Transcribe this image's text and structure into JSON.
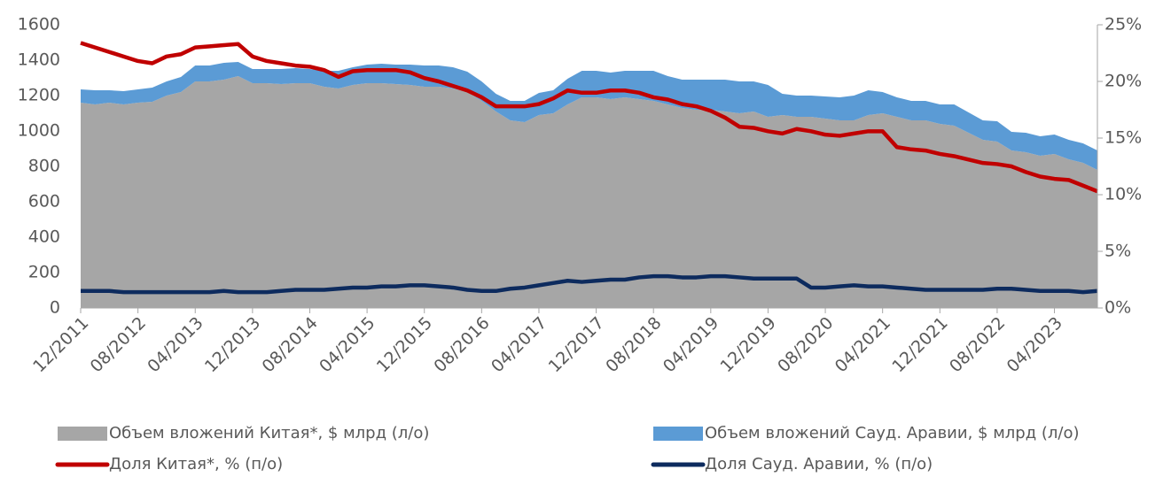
{
  "chart_data": {
    "type": "area",
    "categories": [
      "12/2011",
      null,
      null,
      null,
      "08/2012",
      null,
      null,
      null,
      "04/2013",
      null,
      null,
      null,
      "12/2013",
      null,
      null,
      null,
      "08/2014",
      null,
      null,
      null,
      "04/2015",
      null,
      null,
      null,
      "12/2015",
      null,
      null,
      null,
      "08/2016",
      null,
      null,
      null,
      "04/2017",
      null,
      null,
      null,
      "12/2017",
      null,
      null,
      null,
      "08/2018",
      null,
      null,
      null,
      "04/2019",
      null,
      null,
      null,
      "12/2019",
      null,
      null,
      null,
      "08/2020",
      null,
      null,
      null,
      "04/2021",
      null,
      null,
      null,
      "12/2021",
      null,
      null,
      null,
      "08/2022",
      null,
      null,
      null,
      "04/2023",
      null,
      null,
      null
    ],
    "series": [
      {
        "name": "Объем вложений Китая*, $ млрд (л/о)",
        "type": "area",
        "stacked": true,
        "color": "#a6a6a6",
        "values": [
          1160,
          1150,
          1160,
          1150,
          1160,
          1165,
          1200,
          1220,
          1280,
          1280,
          1290,
          1310,
          1270,
          1270,
          1265,
          1270,
          1270,
          1250,
          1240,
          1260,
          1270,
          1270,
          1265,
          1260,
          1250,
          1250,
          1240,
          1220,
          1170,
          1110,
          1060,
          1050,
          1090,
          1100,
          1150,
          1190,
          1190,
          1180,
          1190,
          1180,
          1170,
          1150,
          1130,
          1120,
          1120,
          1110,
          1100,
          1110,
          1080,
          1090,
          1080,
          1080,
          1070,
          1060,
          1060,
          1090,
          1100,
          1080,
          1060,
          1060,
          1040,
          1030,
          990,
          950,
          940,
          890,
          880,
          860,
          870,
          840,
          820,
          780
        ]
      },
      {
        "name": "Объем вложений Сауд. Аравии, $ млрд (л/о)",
        "type": "area",
        "stacked": true,
        "color": "#5b9bd5",
        "values": [
          75,
          80,
          70,
          75,
          75,
          80,
          80,
          85,
          90,
          90,
          95,
          80,
          80,
          80,
          85,
          85,
          80,
          90,
          100,
          100,
          105,
          110,
          110,
          115,
          120,
          120,
          120,
          115,
          110,
          100,
          110,
          120,
          125,
          130,
          145,
          150,
          150,
          150,
          150,
          160,
          170,
          160,
          160,
          170,
          170,
          180,
          180,
          170,
          180,
          120,
          120,
          120,
          125,
          130,
          140,
          140,
          120,
          110,
          110,
          110,
          110,
          120,
          115,
          110,
          115,
          105,
          110,
          110,
          110,
          110,
          110,
          110
        ]
      },
      {
        "name": "Доля Китая*, % (п/о)",
        "type": "line",
        "axis": "y2",
        "color": "#c00000",
        "values": [
          23.4,
          23.0,
          22.6,
          22.2,
          21.8,
          21.6,
          22.2,
          22.4,
          23.0,
          23.1,
          23.2,
          23.3,
          22.2,
          21.8,
          21.6,
          21.4,
          21.3,
          21.0,
          20.4,
          20.9,
          21.0,
          21.0,
          21.0,
          20.8,
          20.3,
          20.0,
          19.6,
          19.2,
          18.6,
          17.8,
          17.8,
          17.8,
          18.0,
          18.5,
          19.2,
          19.0,
          19.0,
          19.2,
          19.2,
          19.0,
          18.6,
          18.4,
          18.0,
          17.8,
          17.4,
          16.8,
          16.0,
          15.9,
          15.6,
          15.4,
          15.8,
          15.6,
          15.3,
          15.2,
          15.4,
          15.6,
          15.6,
          14.2,
          14.0,
          13.9,
          13.6,
          13.4,
          13.1,
          12.8,
          12.7,
          12.5,
          12.0,
          11.6,
          11.4,
          11.3,
          10.8,
          10.3
        ]
      },
      {
        "name": "Доля Сауд. Аравии, % (п/о)",
        "type": "line",
        "axis": "y2",
        "color": "#0d2b5e",
        "values": [
          1.5,
          1.5,
          1.5,
          1.4,
          1.4,
          1.4,
          1.4,
          1.4,
          1.4,
          1.4,
          1.5,
          1.4,
          1.4,
          1.4,
          1.5,
          1.6,
          1.6,
          1.6,
          1.7,
          1.8,
          1.8,
          1.9,
          1.9,
          2.0,
          2.0,
          1.9,
          1.8,
          1.6,
          1.5,
          1.5,
          1.7,
          1.8,
          2.0,
          2.2,
          2.4,
          2.3,
          2.4,
          2.5,
          2.5,
          2.7,
          2.8,
          2.8,
          2.7,
          2.7,
          2.8,
          2.8,
          2.7,
          2.6,
          2.6,
          2.6,
          2.6,
          1.8,
          1.8,
          1.9,
          2.0,
          1.9,
          1.9,
          1.8,
          1.7,
          1.6,
          1.6,
          1.6,
          1.6,
          1.6,
          1.7,
          1.7,
          1.6,
          1.5,
          1.5,
          1.5,
          1.4,
          1.5
        ]
      }
    ],
    "ylim": [
      0,
      1600
    ],
    "yticks": [
      0,
      200,
      400,
      600,
      800,
      1000,
      1200,
      1400,
      1600
    ],
    "y2lim": [
      0,
      25
    ],
    "y2ticks": [
      {
        "value": 0,
        "label": "0%"
      },
      {
        "value": 5,
        "label": "5%"
      },
      {
        "value": 10,
        "label": "10%"
      },
      {
        "value": 15,
        "label": "15%"
      },
      {
        "value": 20,
        "label": "20%"
      },
      {
        "value": 25,
        "label": "25%"
      }
    ],
    "grid": false,
    "legend": "bottom"
  }
}
